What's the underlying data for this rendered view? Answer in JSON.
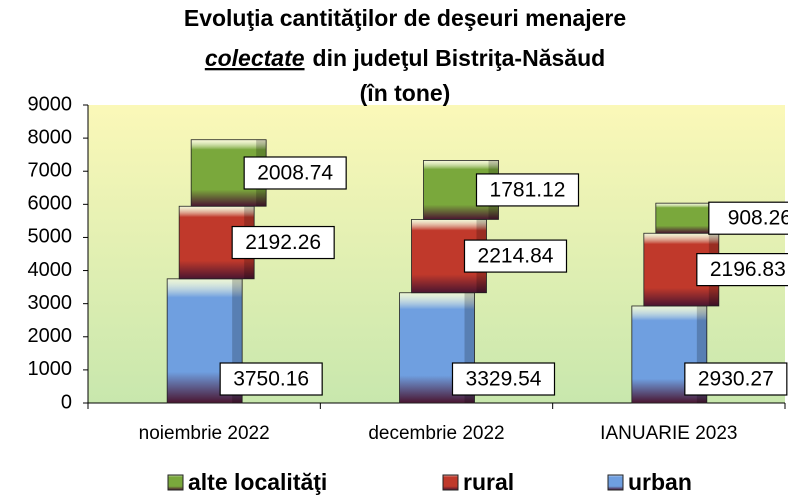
{
  "chart_data": {
    "type": "bar",
    "stacked": true,
    "title": [
      "Evoluţia cantităţilor de deşeuri menajere",
      "colectate",
      "din judeţul Bistriţa-Năsăud",
      "(în tone)"
    ],
    "categories": [
      "noiembrie 2022",
      "decembrie 2022",
      "IANUARIE 2023"
    ],
    "series": [
      {
        "name": "alte localităţi",
        "color": "#7aa83c",
        "values": [
          2008.74,
          1781.12,
          908.26
        ]
      },
      {
        "name": "rural",
        "color": "#c0392b",
        "values": [
          2192.26,
          2214.84,
          2196.83
        ]
      },
      {
        "name": "urban",
        "color": "#6f9fe0",
        "values": [
          3750.16,
          3329.54,
          2930.27
        ]
      }
    ],
    "ylim": [
      0,
      9000
    ],
    "yticks": [
      0,
      1000,
      2000,
      3000,
      4000,
      5000,
      6000,
      7000,
      8000,
      9000
    ],
    "legend": "bottom"
  }
}
